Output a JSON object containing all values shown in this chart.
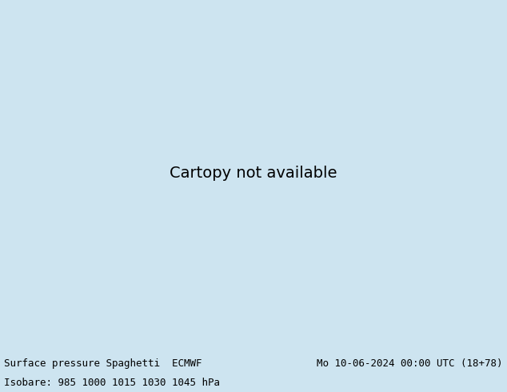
{
  "title_left": "Surface pressure Spaghetti  ECMWF",
  "title_right": "Mo 10-06-2024 00:00 UTC (18+78)",
  "subtitle": "Isobare: 985 1000 1015 1030 1045 hPa",
  "text_color": "#000000",
  "fig_width": 6.34,
  "fig_height": 4.9,
  "dpi": 100,
  "font_size_title": 9,
  "font_size_subtitle": 9,
  "map_extent": [
    25,
    155,
    5,
    75
  ],
  "bottom_bg_color": "#cde4f0",
  "ocean_color": "#b8d8e8",
  "land_color": "#e8e0c8",
  "lake_color": "#b8d8e8",
  "border_color": "#888888",
  "coastline_color": "#888888",
  "contour_colors_985": [
    "#606060",
    "#707070",
    "#808080",
    "#505050",
    "#404040"
  ],
  "contour_colors_1000": [
    "#00aaff",
    "#0088cc",
    "#00ccff",
    "#0066aa",
    "#00bbee"
  ],
  "contour_colors_1015": [
    "#ff00ff",
    "#cc00cc",
    "#ee00ee",
    "#dd00dd",
    "#bb00bb"
  ],
  "contour_colors_1030": [
    "#ff8800",
    "#ff6600",
    "#ff9900",
    "#ee7700",
    "#ff7700"
  ],
  "contour_colors_1045": [
    "#ff0000",
    "#cc0000",
    "#ee1111",
    "#dd0000",
    "#ff2222"
  ],
  "extra_colors": [
    "#00cc00",
    "#33bb33",
    "#009900",
    "#ffff00",
    "#dddd00",
    "#9900cc",
    "#7700aa",
    "#ff6699",
    "#ff3377",
    "#00dddd",
    "#0000ff",
    "#0000cc",
    "#ff69b4",
    "#cc4488",
    "#8B4513",
    "#556B2F",
    "#00CED1",
    "#FF4500",
    "#4169E1",
    "#DC143C"
  ]
}
